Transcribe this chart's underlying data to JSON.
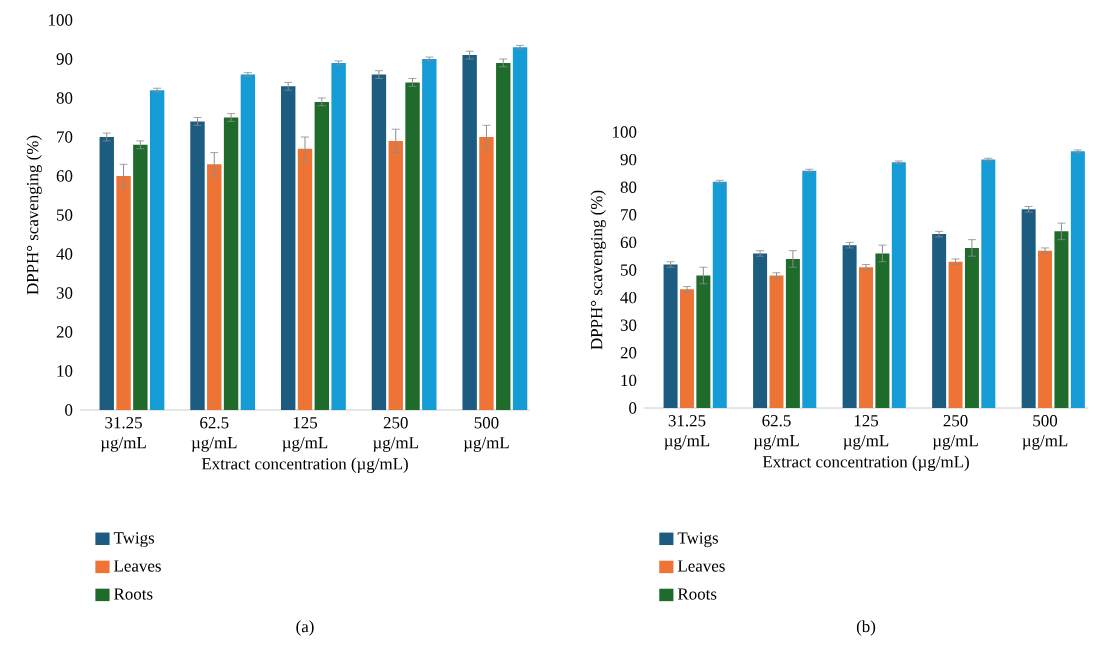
{
  "chart_data": [
    {
      "type": "bar",
      "xlabel": "Extract concentration (µg/mL)",
      "ylabel": "DPPH° scavenging (%)",
      "categories": [
        "31.25 µg/mL",
        "62.5 µg/mL",
        "125 µg/mL",
        "250 µg/mL",
        "500 µg/mL"
      ],
      "series": [
        {
          "name": "Twigs",
          "color": "#1b5c80",
          "values": [
            70,
            74,
            83,
            86,
            91
          ],
          "errors": [
            1,
            1,
            1,
            1,
            1
          ]
        },
        {
          "name": "Leaves",
          "color": "#ed7434",
          "values": [
            60,
            63,
            67,
            69,
            70
          ],
          "errors": [
            3,
            3,
            3,
            3,
            3
          ]
        },
        {
          "name": "Roots",
          "color": "#1e6b2c",
          "values": [
            68,
            75,
            79,
            84,
            89
          ],
          "errors": [
            1,
            1,
            1,
            1,
            1
          ]
        },
        {
          "color": "#159bd6",
          "values": [
            82,
            86,
            89,
            90,
            93
          ],
          "errors": [
            0.5,
            0.5,
            0.5,
            0.5,
            0.5
          ]
        }
      ],
      "ylim": [
        0,
        100
      ],
      "yticks": [
        0,
        10,
        20,
        30,
        40,
        50,
        60,
        70,
        80,
        90,
        100
      ],
      "legend": "bottom",
      "annotations": [
        "(a)"
      ]
    },
    {
      "type": "bar",
      "xlabel": "Extract concentration (µg/mL)",
      "ylabel": "DPPH° scavenging (%)",
      "categories": [
        "31.25 µg/mL",
        "62.5 µg/mL",
        "125 µg/mL",
        "250 µg/mL",
        "500 µg/mL"
      ],
      "series": [
        {
          "name": "Twigs",
          "color": "#1b5c80",
          "values": [
            52,
            56,
            59,
            63,
            72
          ],
          "errors": [
            1,
            1,
            1,
            1,
            1
          ]
        },
        {
          "name": "Leaves",
          "color": "#ed7434",
          "values": [
            43,
            48,
            51,
            53,
            57
          ],
          "errors": [
            1,
            1,
            1,
            1,
            1
          ]
        },
        {
          "name": "Roots",
          "color": "#1e6b2c",
          "values": [
            48,
            54,
            56,
            58,
            64
          ],
          "errors": [
            3,
            3,
            3,
            3,
            3
          ]
        },
        {
          "color": "#159bd6",
          "values": [
            82,
            86,
            89,
            90,
            93
          ],
          "errors": [
            0.5,
            0.5,
            0.5,
            0.5,
            0.5
          ]
        }
      ],
      "ylim": [
        0,
        100
      ],
      "yticks": [
        0,
        10,
        20,
        30,
        40,
        50,
        60,
        70,
        80,
        90,
        100
      ],
      "legend": "bottom",
      "annotations": [
        "(b)"
      ]
    }
  ]
}
